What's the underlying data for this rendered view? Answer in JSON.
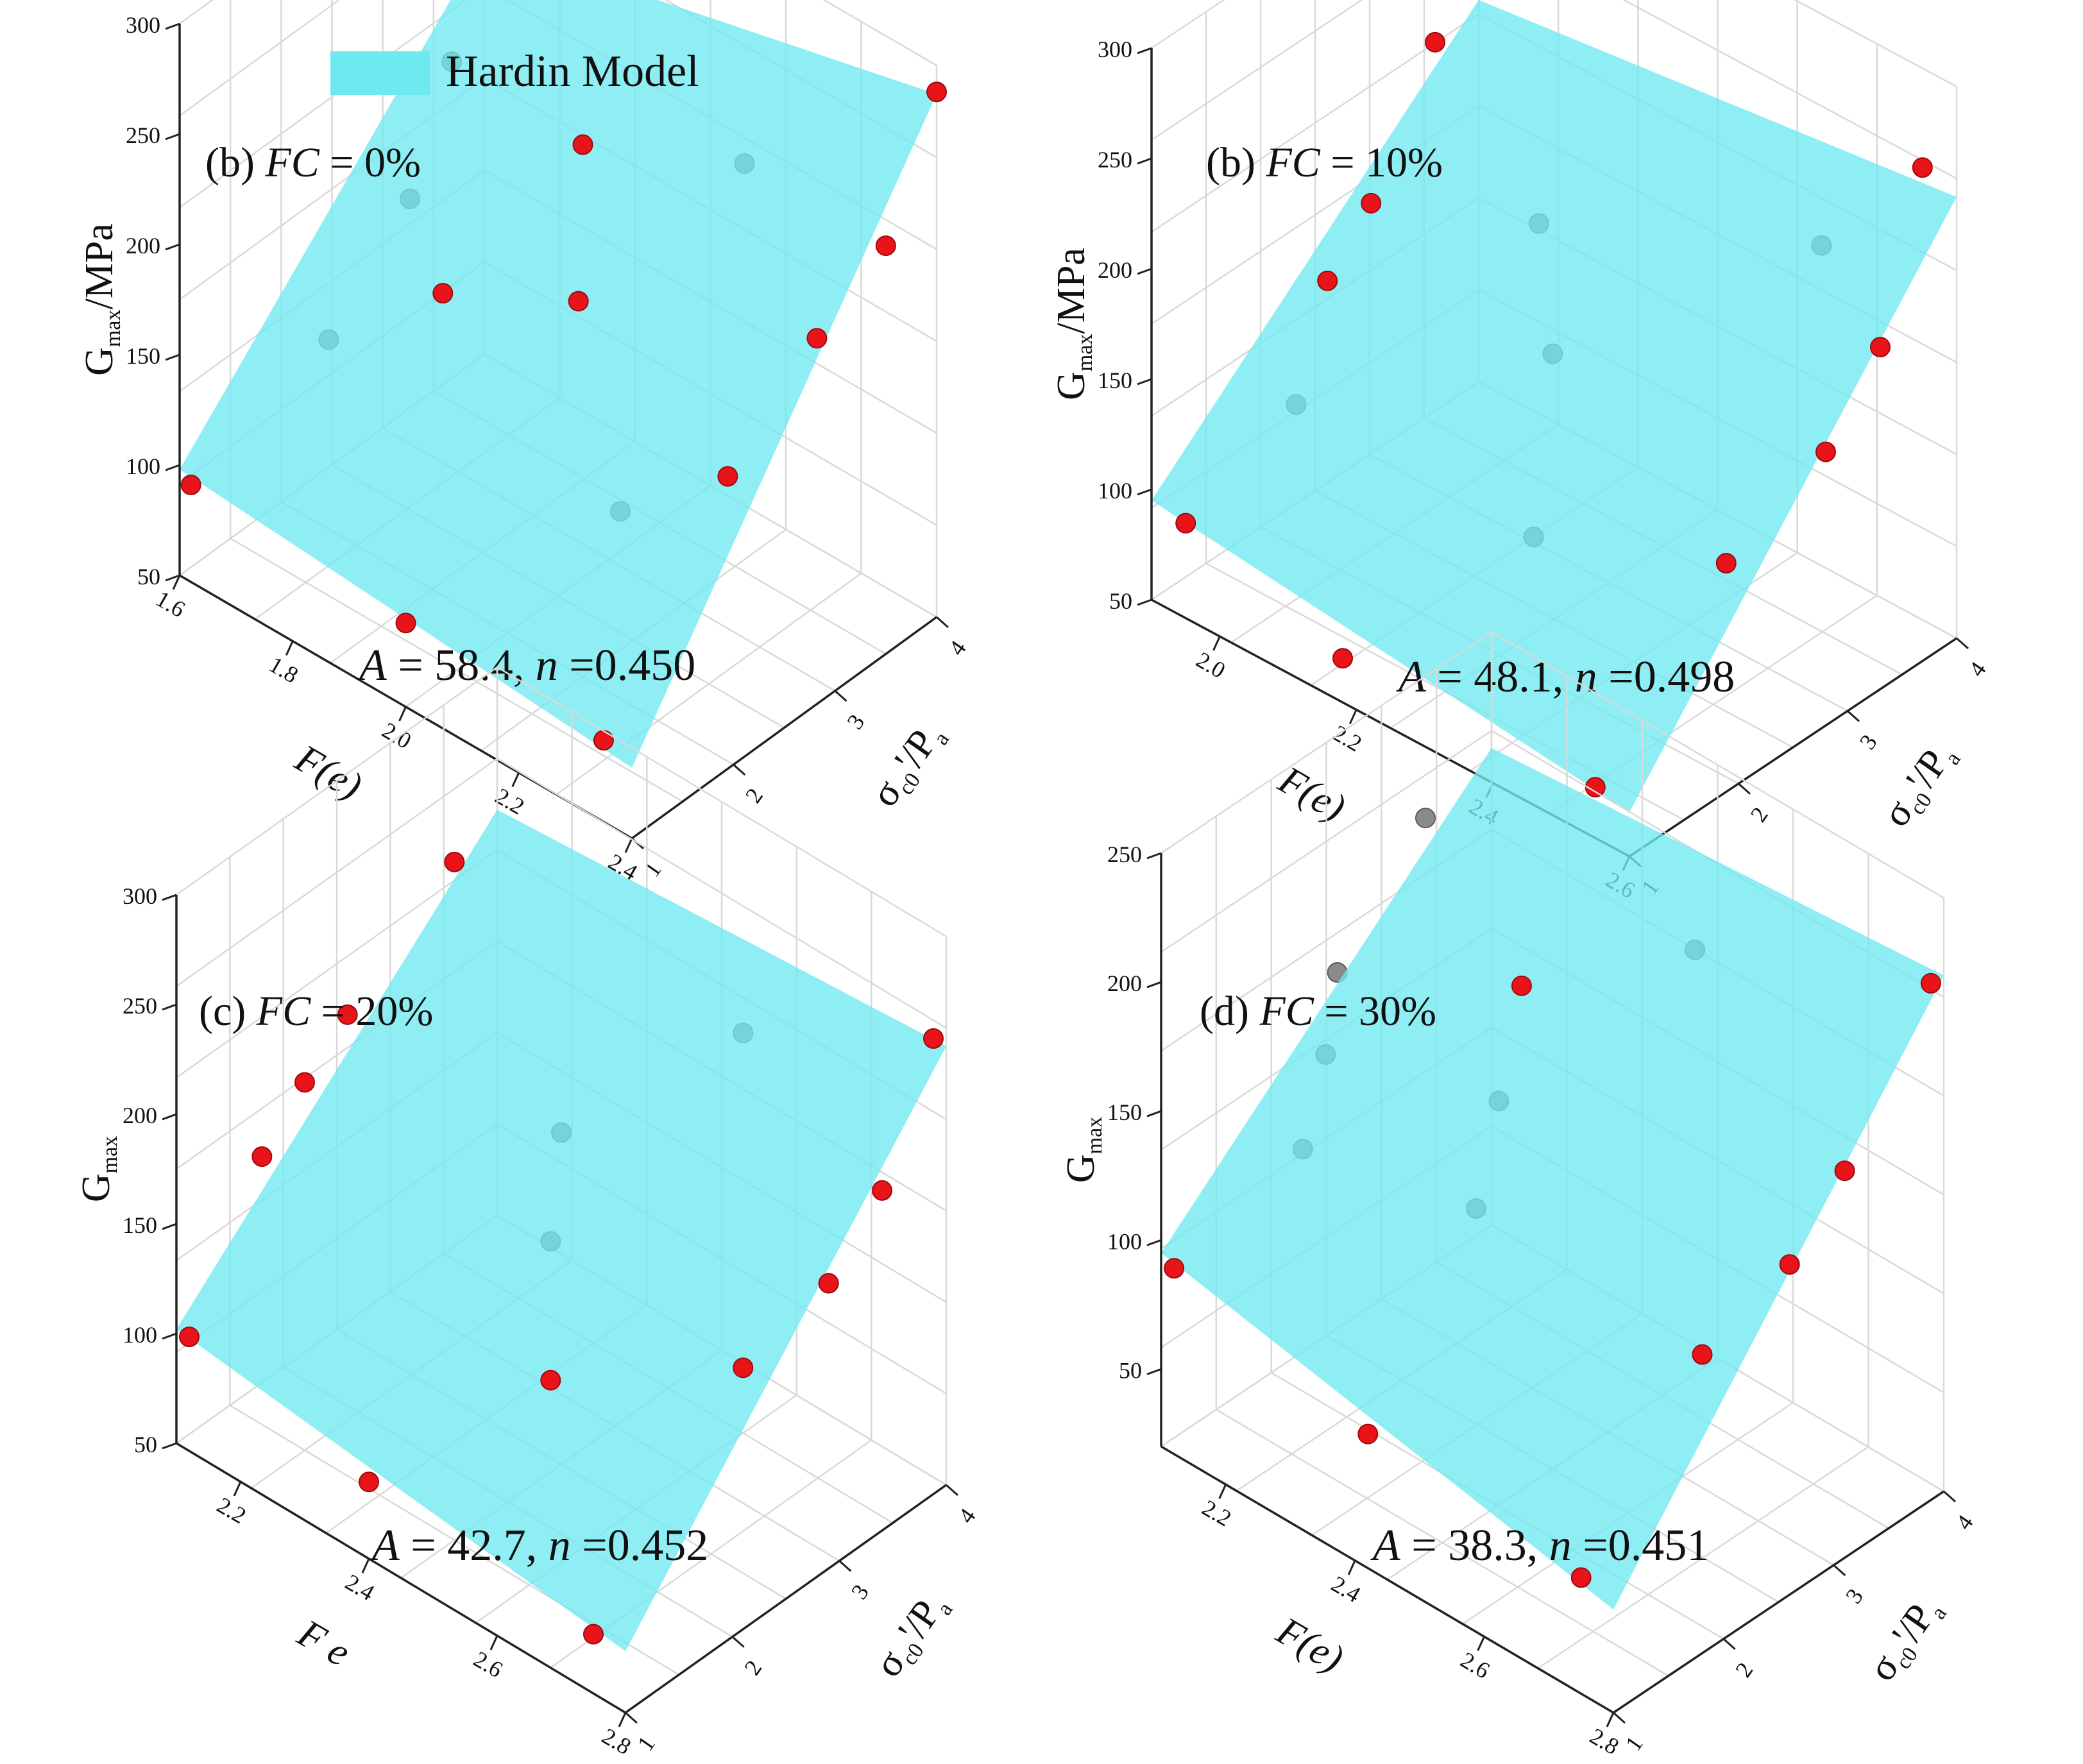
{
  "legend": {
    "label": "Hardin Model",
    "color": "#6fe9f0"
  },
  "colors": {
    "surface": "#6fe9f0",
    "measured_point": "#e8141a",
    "hidden_point": "#8a8a8a",
    "grid": "#d9d9d9",
    "axis": "#222222"
  },
  "chart_data": [
    {
      "type": "scatter3d",
      "panel_label": "(b)",
      "fc_label": "FC",
      "fc_value": " = 0%",
      "equation": {
        "A_symbol": "A",
        "A_text": " = 58.4, ",
        "n_symbol": "n",
        "n_text": " =0.450"
      },
      "A": 58.4,
      "n": 0.45,
      "zlabel": {
        "main": "G",
        "sub": "max",
        "suffix": "/MPa"
      },
      "xlabel": "F(e)",
      "ylabel": {
        "main": "σ",
        "sub": "c0",
        "mid": "'/P",
        "sub2": "a"
      },
      "x_range": [
        1.6,
        2.4
      ],
      "y_range": [
        1,
        4
      ],
      "z_range": [
        50,
        300
      ],
      "x_ticks": [
        "1.6",
        "1.8",
        "2.0",
        "2.2",
        "2.4"
      ],
      "y_ticks": [
        "1",
        "2",
        "3",
        "4"
      ],
      "z_ticks": [
        "50",
        "100",
        "150",
        "200",
        "250",
        "300"
      ],
      "surface_corners_z": {
        "fe_min_p_min": 98,
        "fe_max_p_min": 82,
        "fe_min_p_max": 237,
        "fe_max_p_max": 287
      },
      "points": [
        {
          "fe": 1.62,
          "p": 1.0,
          "g": 94,
          "hidden": false
        },
        {
          "fe": 2.0,
          "p": 1.0,
          "g": 88,
          "hidden": false
        },
        {
          "fe": 2.35,
          "p": 1.0,
          "g": 87,
          "hidden": false
        },
        {
          "fe": 1.72,
          "p": 1.8,
          "g": 148,
          "hidden": true
        },
        {
          "fe": 1.85,
          "p": 2.2,
          "g": 175,
          "hidden": false
        },
        {
          "fe": 1.72,
          "p": 2.6,
          "g": 185,
          "hidden": true
        },
        {
          "fe": 2.2,
          "p": 2.0,
          "g": 135,
          "hidden": true
        },
        {
          "fe": 2.0,
          "p": 2.7,
          "g": 177,
          "hidden": false
        },
        {
          "fe": 1.65,
          "p": 3.4,
          "g": 210,
          "hidden": true
        },
        {
          "fe": 1.9,
          "p": 3.3,
          "g": 213,
          "hidden": false
        },
        {
          "fe": 2.3,
          "p": 2.5,
          "g": 149,
          "hidden": false
        },
        {
          "fe": 2.15,
          "p": 3.5,
          "g": 235,
          "hidden": true
        },
        {
          "fe": 2.35,
          "p": 3.1,
          "g": 199,
          "hidden": false
        },
        {
          "fe": 2.4,
          "p": 3.5,
          "g": 235,
          "hidden": false
        },
        {
          "fe": 2.4,
          "p": 4.0,
          "g": 288,
          "hidden": false
        }
      ]
    },
    {
      "type": "scatter3d",
      "panel_label": "(b)",
      "fc_label": "FC",
      "fc_value": " = 10%",
      "equation": {
        "A_symbol": "A",
        "A_text": " = 48.1, ",
        "n_symbol": "n",
        "n_text": " =0.498"
      },
      "A": 48.1,
      "n": 0.498,
      "zlabel": {
        "main": "G",
        "sub": "max",
        "suffix": "/MPa"
      },
      "xlabel": "F(e)",
      "ylabel": {
        "main": "σ",
        "sub": "c0",
        "mid": "'/P",
        "sub2": "a"
      },
      "x_range": [
        1.9,
        2.6
      ],
      "y_range": [
        1,
        4
      ],
      "z_range": [
        50,
        300
      ],
      "x_ticks": [
        "2.0",
        "2.2",
        "2.4",
        "2.6"
      ],
      "y_ticks": [
        "1",
        "2",
        "3",
        "4"
      ],
      "z_ticks": [
        "50",
        "100",
        "150",
        "200",
        "250",
        "300"
      ],
      "surface_corners_z": {
        "fe_min_p_min": 95,
        "fe_max_p_min": 70,
        "fe_min_p_max": 223,
        "fe_max_p_max": 250
      },
      "points": [
        {
          "fe": 1.95,
          "p": 1.0,
          "g": 93,
          "hidden": false
        },
        {
          "fe": 2.18,
          "p": 1.0,
          "g": 70,
          "hidden": false
        },
        {
          "fe": 2.55,
          "p": 1.0,
          "g": 73,
          "hidden": false
        },
        {
          "fe": 2.0,
          "p": 1.7,
          "g": 132,
          "hidden": true
        },
        {
          "fe": 1.95,
          "p": 2.3,
          "g": 160,
          "hidden": false
        },
        {
          "fe": 1.95,
          "p": 2.7,
          "g": 182,
          "hidden": false
        },
        {
          "fe": 2.3,
          "p": 2.0,
          "g": 112,
          "hidden": true
        },
        {
          "fe": 2.2,
          "p": 2.8,
          "g": 152,
          "hidden": true
        },
        {
          "fe": 2.1,
          "p": 3.3,
          "g": 178,
          "hidden": true
        },
        {
          "fe": 1.9,
          "p": 3.6,
          "g": 217,
          "hidden": false
        },
        {
          "fe": 2.55,
          "p": 2.2,
          "g": 135,
          "hidden": false
        },
        {
          "fe": 2.45,
          "p": 3.7,
          "g": 213,
          "hidden": true
        },
        {
          "fe": 2.6,
          "p": 2.8,
          "g": 174,
          "hidden": false
        },
        {
          "fe": 2.6,
          "p": 3.3,
          "g": 205,
          "hidden": false
        },
        {
          "fe": 2.55,
          "p": 4.0,
          "g": 255,
          "hidden": false
        }
      ]
    },
    {
      "type": "scatter3d",
      "panel_label": "(c)",
      "fc_label": "FC",
      "fc_value": " = 20%",
      "equation": {
        "A_symbol": "A",
        "A_text": " = 42.7, ",
        "n_symbol": "n",
        "n_text": " =0.452"
      },
      "A": 42.7,
      "n": 0.452,
      "zlabel": {
        "main": "G",
        "sub": "max",
        "suffix": ""
      },
      "xlabel": "F e",
      "ylabel": {
        "main": "σ",
        "sub": "c0",
        "mid": "'/P",
        "sub2": "a"
      },
      "x_range": [
        2.1,
        2.8
      ],
      "y_range": [
        1,
        4
      ],
      "z_range": [
        50,
        300
      ],
      "x_ticks": [
        "2.2",
        "2.4",
        "2.6",
        "2.8"
      ],
      "y_ticks": [
        "1",
        "2",
        "3",
        "4"
      ],
      "z_ticks": [
        "50",
        "100",
        "150",
        "200",
        "250",
        "300"
      ],
      "surface_corners_z": {
        "fe_min_p_min": 102,
        "fe_max_p_min": 78,
        "fe_min_p_max": 235,
        "fe_max_p_max": 250
      },
      "points": [
        {
          "fe": 2.12,
          "p": 1.0,
          "g": 102,
          "hidden": false
        },
        {
          "fe": 2.4,
          "p": 1.0,
          "g": 85,
          "hidden": false
        },
        {
          "fe": 2.75,
          "p": 1.0,
          "g": 77,
          "hidden": false
        },
        {
          "fe": 2.1,
          "p": 1.8,
          "g": 153,
          "hidden": false
        },
        {
          "fe": 2.1,
          "p": 2.2,
          "g": 173,
          "hidden": false
        },
        {
          "fe": 2.1,
          "p": 2.6,
          "g": 190,
          "hidden": false
        },
        {
          "fe": 2.55,
          "p": 1.8,
          "g": 130,
          "hidden": false
        },
        {
          "fe": 2.45,
          "p": 2.4,
          "g": 155,
          "hidden": true
        },
        {
          "fe": 2.4,
          "p": 2.8,
          "g": 182,
          "hidden": true
        },
        {
          "fe": 2.1,
          "p": 3.6,
          "g": 225,
          "hidden": false
        },
        {
          "fe": 2.75,
          "p": 2.4,
          "g": 150,
          "hidden": false
        },
        {
          "fe": 2.55,
          "p": 3.6,
          "g": 226,
          "hidden": true
        },
        {
          "fe": 2.8,
          "p": 2.9,
          "g": 180,
          "hidden": false
        },
        {
          "fe": 2.8,
          "p": 3.4,
          "g": 205,
          "hidden": false
        },
        {
          "fe": 2.78,
          "p": 4.0,
          "g": 250,
          "hidden": false
        }
      ]
    },
    {
      "type": "scatter3d",
      "panel_label": "(d)",
      "fc_label": "FC",
      "fc_value": " = 30%",
      "equation": {
        "A_symbol": "A",
        "A_text": " = 38.3, ",
        "n_symbol": "n",
        "n_text": " =0.451"
      },
      "A": 38.3,
      "n": 0.451,
      "zlabel": {
        "main": "G",
        "sub": "max",
        "suffix": ""
      },
      "xlabel": "F(e)",
      "ylabel": {
        "main": "σ",
        "sub": "c0",
        "mid": "'/P",
        "sub2": "a"
      },
      "x_range": [
        2.1,
        2.8
      ],
      "y_range": [
        1,
        4
      ],
      "z_range": [
        20,
        250
      ],
      "x_ticks": [
        "2.2",
        "2.4",
        "2.6",
        "2.8"
      ],
      "y_ticks": [
        "1",
        "2",
        "3",
        "4"
      ],
      "z_ticks": [
        "50",
        "100",
        "150",
        "200",
        "250"
      ],
      "surface_corners_z": {
        "fe_min_p_min": 95,
        "fe_max_p_min": 60,
        "fe_min_p_max": 205,
        "fe_max_p_max": 220
      },
      "points": [
        {
          "fe": 2.12,
          "p": 1.0,
          "g": 92,
          "hidden": false
        },
        {
          "fe": 2.42,
          "p": 1.0,
          "g": 72,
          "hidden": false
        },
        {
          "fe": 2.75,
          "p": 1.0,
          "g": 65,
          "hidden": false
        },
        {
          "fe": 2.2,
          "p": 1.7,
          "g": 130,
          "hidden": true
        },
        {
          "fe": 2.15,
          "p": 2.2,
          "g": 145,
          "hidden": true
        },
        {
          "fe": 2.1,
          "p": 2.6,
          "g": 158,
          "hidden": true
        },
        {
          "fe": 2.4,
          "p": 2.1,
          "g": 125,
          "hidden": true
        },
        {
          "fe": 2.35,
          "p": 2.6,
          "g": 145,
          "hidden": true
        },
        {
          "fe": 2.1,
          "p": 3.4,
          "g": 195,
          "hidden": true
        },
        {
          "fe": 2.3,
          "p": 3.1,
          "g": 168,
          "hidden": false
        },
        {
          "fe": 2.75,
          "p": 2.1,
          "g": 120,
          "hidden": false
        },
        {
          "fe": 2.5,
          "p": 3.5,
          "g": 200,
          "hidden": true
        },
        {
          "fe": 2.8,
          "p": 2.6,
          "g": 148,
          "hidden": false
        },
        {
          "fe": 2.8,
          "p": 3.1,
          "g": 170,
          "hidden": false
        },
        {
          "fe": 2.78,
          "p": 4.0,
          "g": 214,
          "hidden": false
        }
      ]
    }
  ]
}
